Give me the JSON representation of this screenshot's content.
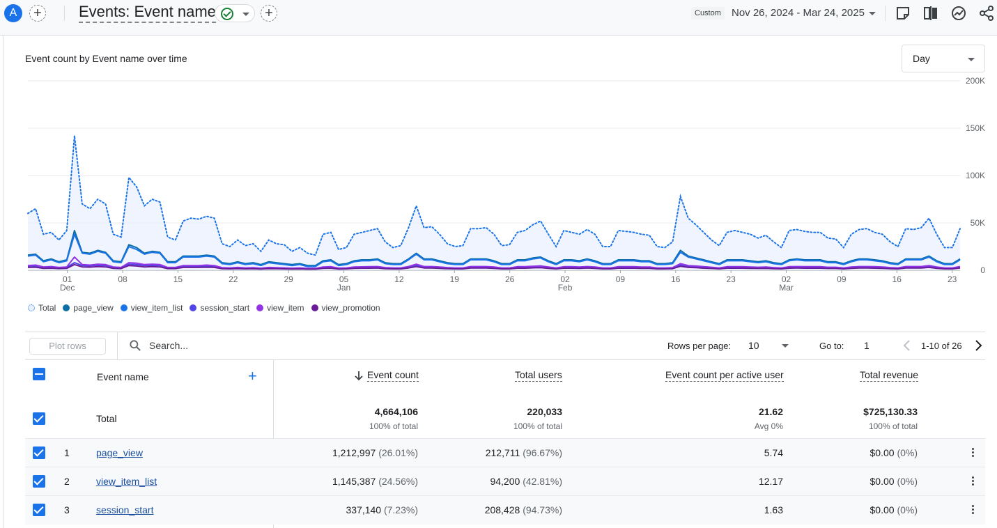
{
  "header": {
    "avatar_letter": "A",
    "title": "Events: Event name",
    "date_chip": "Custom",
    "date_range": "Nov 26, 2024 - Mar 24, 2025",
    "icons": [
      "add-icon",
      "check-circle-icon",
      "chevron-down-icon",
      "add-icon",
      "share-note-icon",
      "compare-icon",
      "insights-icon",
      "share-icon"
    ]
  },
  "chart": {
    "title": "Event count by Event name over time",
    "granularity": "Day",
    "legend": [
      "Total",
      "page_view",
      "view_item_list",
      "session_start",
      "view_item",
      "view_promotion"
    ]
  },
  "chart_data": {
    "type": "line",
    "title": "Event count by Event name over time",
    "x_start": "Nov 26, 2024",
    "x_end": "Mar 24, 2025",
    "x_ticks": [
      {
        "label": "01",
        "sub": "Dec",
        "date": "2024-12-01"
      },
      {
        "label": "08",
        "sub": "",
        "date": "2024-12-08"
      },
      {
        "label": "15",
        "sub": "",
        "date": "2024-12-15"
      },
      {
        "label": "22",
        "sub": "",
        "date": "2024-12-22"
      },
      {
        "label": "29",
        "sub": "",
        "date": "2024-12-29"
      },
      {
        "label": "05",
        "sub": "Jan",
        "date": "2025-01-05"
      },
      {
        "label": "12",
        "sub": "",
        "date": "2025-01-12"
      },
      {
        "label": "19",
        "sub": "",
        "date": "2025-01-19"
      },
      {
        "label": "26",
        "sub": "",
        "date": "2025-01-26"
      },
      {
        "label": "02",
        "sub": "Feb",
        "date": "2025-02-02"
      },
      {
        "label": "09",
        "sub": "",
        "date": "2025-02-09"
      },
      {
        "label": "16",
        "sub": "",
        "date": "2025-02-16"
      },
      {
        "label": "23",
        "sub": "",
        "date": "2025-02-23"
      },
      {
        "label": "02",
        "sub": "Mar",
        "date": "2025-03-02"
      },
      {
        "label": "09",
        "sub": "",
        "date": "2025-03-09"
      },
      {
        "label": "16",
        "sub": "",
        "date": "2025-03-16"
      },
      {
        "label": "23",
        "sub": "",
        "date": "2025-03-23"
      }
    ],
    "y_ticks": [
      "0",
      "50K",
      "100K",
      "150K",
      "200K"
    ],
    "ylim": [
      0,
      200000
    ],
    "grid": true,
    "series": [
      {
        "name": "Total",
        "color": "#1a73e8",
        "style": "dotted-area",
        "values": [
          60000,
          65000,
          38000,
          40000,
          32000,
          42000,
          142000,
          70000,
          65000,
          75000,
          70000,
          38000,
          35000,
          98000,
          88000,
          68000,
          75000,
          72000,
          35000,
          32000,
          52000,
          55000,
          54000,
          57000,
          55000,
          28000,
          25000,
          32000,
          26000,
          28000,
          20000,
          32000,
          28000,
          27000,
          20000,
          24000,
          18000,
          16000,
          38000,
          40000,
          22000,
          24000,
          38000,
          40000,
          42000,
          44000,
          30000,
          24000,
          26000,
          45000,
          68000,
          45000,
          46000,
          38000,
          28000,
          25000,
          26000,
          44000,
          44000,
          45000,
          38000,
          26000,
          27000,
          40000,
          42000,
          48000,
          52000,
          38000,
          25000,
          42000,
          40000,
          38000,
          43000,
          38000,
          25000,
          25000,
          42000,
          41000,
          40000,
          38000,
          37000,
          25000,
          24000,
          30000,
          78000,
          55000,
          48000,
          40000,
          32000,
          26000,
          40000,
          42000,
          40000,
          38000,
          34000,
          37000,
          30000,
          24000,
          42000,
          43000,
          41000,
          40000,
          40000,
          34000,
          33000,
          24000,
          38000,
          43000,
          44000,
          40000,
          38000,
          30000,
          25000,
          44000,
          43000,
          45000,
          55000,
          38000,
          24000,
          24000,
          44000
        ]
      },
      {
        "name": "page_view",
        "color": "#0b6ea6",
        "style": "line",
        "values": [
          16000,
          17000,
          10000,
          12000,
          9000,
          11000,
          42000,
          19000,
          18000,
          21000,
          19000,
          10000,
          9000,
          27000,
          24000,
          18000,
          20000,
          19000,
          9000,
          9000,
          15000,
          15000,
          15000,
          16000,
          15000,
          8000,
          7000,
          9000,
          7000,
          8000,
          6000,
          9000,
          8000,
          7000,
          6000,
          7000,
          5000,
          5000,
          10000,
          11000,
          6000,
          7000,
          10000,
          11000,
          11000,
          12000,
          8000,
          7000,
          7000,
          12000,
          18000,
          12000,
          12000,
          10000,
          8000,
          7000,
          7000,
          12000,
          12000,
          12000,
          10000,
          7000,
          7000,
          11000,
          11000,
          13000,
          14000,
          10000,
          7000,
          11000,
          11000,
          10000,
          12000,
          10000,
          7000,
          7000,
          11000,
          11000,
          11000,
          10000,
          10000,
          7000,
          7000,
          8000,
          21000,
          15000,
          13000,
          11000,
          9000,
          7000,
          11000,
          11000,
          11000,
          10000,
          9000,
          10000,
          8000,
          7000,
          11000,
          12000,
          11000,
          11000,
          11000,
          9000,
          9000,
          7000,
          10000,
          12000,
          12000,
          11000,
          10000,
          8000,
          7000,
          12000,
          12000,
          12000,
          15000,
          10000,
          7000,
          7000,
          12000
        ]
      },
      {
        "name": "view_item_list",
        "color": "#1a73e8",
        "style": "line",
        "values": [
          15000,
          16000,
          9000,
          11000,
          8000,
          10000,
          38000,
          18000,
          17000,
          20000,
          18000,
          9000,
          8000,
          25000,
          22000,
          17000,
          19000,
          18000,
          8000,
          8000,
          14000,
          14000,
          14000,
          15000,
          14000,
          7000,
          6000,
          8000,
          6000,
          7000,
          5000,
          8000,
          7000,
          6000,
          5000,
          6000,
          4000,
          4000,
          9000,
          10000,
          5000,
          6000,
          9000,
          10000,
          10000,
          11000,
          7000,
          6000,
          6000,
          11000,
          17000,
          11000,
          11000,
          9000,
          7000,
          6000,
          6000,
          11000,
          11000,
          11000,
          9000,
          6000,
          6000,
          10000,
          10000,
          12000,
          13000,
          9000,
          6000,
          10000,
          10000,
          9000,
          11000,
          9000,
          6000,
          6000,
          10000,
          10000,
          10000,
          9000,
          9000,
          6000,
          6000,
          7000,
          19000,
          14000,
          12000,
          10000,
          8000,
          6000,
          10000,
          10000,
          10000,
          9000,
          8000,
          9000,
          7000,
          6000,
          10000,
          11000,
          10000,
          10000,
          10000,
          8000,
          8000,
          6000,
          9000,
          11000,
          11000,
          10000,
          9000,
          7000,
          6000,
          11000,
          11000,
          11000,
          14000,
          9000,
          6000,
          6000,
          11000
        ]
      },
      {
        "name": "session_start",
        "color": "#4f46e5",
        "style": "line",
        "values": [
          4000,
          4500,
          3000,
          3200,
          2800,
          3000,
          8000,
          5000,
          4800,
          5200,
          5000,
          3000,
          2800,
          6500,
          6000,
          5000,
          5200,
          5000,
          2800,
          2700,
          4200,
          4200,
          4300,
          4400,
          4200,
          2500,
          2300,
          2700,
          2300,
          2500,
          2000,
          2700,
          2400,
          2300,
          2000,
          2200,
          1800,
          1800,
          3000,
          3200,
          2000,
          2200,
          3000,
          3200,
          3200,
          3400,
          2500,
          2200,
          2200,
          3400,
          5000,
          3400,
          3400,
          3000,
          2500,
          2200,
          2200,
          3400,
          3400,
          3400,
          3000,
          2200,
          2200,
          3200,
          3200,
          3600,
          3800,
          3000,
          2200,
          3200,
          3200,
          3000,
          3400,
          3000,
          2200,
          2200,
          3200,
          3200,
          3200,
          3000,
          3000,
          2200,
          2200,
          2400,
          5500,
          4200,
          3800,
          3200,
          2700,
          2200,
          3200,
          3200,
          3200,
          3000,
          2700,
          3000,
          2500,
          2200,
          3200,
          3400,
          3200,
          3200,
          3200,
          2700,
          2700,
          2200,
          3000,
          3400,
          3400,
          3200,
          3000,
          2500,
          2200,
          3400,
          3400,
          3400,
          4000,
          3000,
          2200,
          2200,
          3400
        ]
      },
      {
        "name": "view_item",
        "color": "#9334e6",
        "style": "line",
        "values": [
          5000,
          5500,
          3500,
          4000,
          3000,
          3500,
          14000,
          6000,
          5500,
          6500,
          6000,
          3500,
          3000,
          8000,
          7500,
          6000,
          6500,
          6000,
          3000,
          3000,
          5000,
          5000,
          5000,
          5500,
          5000,
          2800,
          2500,
          3000,
          2500,
          2800,
          2200,
          3000,
          2700,
          2500,
          2200,
          2500,
          2000,
          2000,
          3500,
          3800,
          2300,
          2500,
          3500,
          3700,
          3800,
          4000,
          2900,
          2500,
          2500,
          4000,
          6500,
          4000,
          4000,
          3500,
          2900,
          2500,
          2500,
          4000,
          4000,
          4000,
          3500,
          2500,
          2500,
          3800,
          3800,
          4300,
          4600,
          3500,
          2500,
          3800,
          3800,
          3500,
          4000,
          3500,
          2500,
          2500,
          3800,
          3800,
          3800,
          3500,
          3500,
          2500,
          2500,
          2800,
          7000,
          5000,
          4500,
          3800,
          3200,
          2500,
          3800,
          3800,
          3800,
          3500,
          3200,
          3500,
          2900,
          2500,
          3800,
          4000,
          3800,
          3800,
          3800,
          3200,
          3200,
          2500,
          3500,
          4000,
          4000,
          3800,
          3500,
          2900,
          2500,
          4000,
          4000,
          4000,
          5000,
          3500,
          2500,
          2500,
          4000
        ]
      },
      {
        "name": "view_promotion",
        "color": "#6a1b9a",
        "style": "line",
        "values": [
          3000,
          3200,
          2000,
          2200,
          1800,
          2000,
          6000,
          3500,
          3300,
          3800,
          3500,
          2000,
          1800,
          5000,
          4500,
          3500,
          3800,
          3500,
          1800,
          1800,
          3000,
          3000,
          3000,
          3200,
          3000,
          1600,
          1500,
          1800,
          1500,
          1600,
          1300,
          1800,
          1600,
          1500,
          1300,
          1500,
          1200,
          1200,
          2000,
          2200,
          1300,
          1500,
          2000,
          2200,
          2200,
          2400,
          1700,
          1500,
          1500,
          2400,
          3800,
          2400,
          2400,
          2000,
          1700,
          1500,
          1500,
          2400,
          2400,
          2400,
          2000,
          1500,
          1500,
          2200,
          2200,
          2600,
          2800,
          2000,
          1500,
          2200,
          2200,
          2000,
          2400,
          2000,
          1500,
          1500,
          2200,
          2200,
          2200,
          2000,
          2000,
          1500,
          1500,
          1700,
          4200,
          3000,
          2700,
          2200,
          1900,
          1500,
          2200,
          2200,
          2200,
          2000,
          1900,
          2000,
          1700,
          1500,
          2200,
          2400,
          2200,
          2200,
          2200,
          1900,
          1900,
          1500,
          2000,
          2400,
          2400,
          2200,
          2000,
          1700,
          1500,
          2400,
          2400,
          2400,
          3000,
          2000,
          1500,
          1500,
          2400
        ]
      }
    ]
  },
  "toolbar": {
    "plot_rows": "Plot rows",
    "search_placeholder": "Search...",
    "rows_per_page_label": "Rows per page:",
    "rows_per_page": "10",
    "goto_label": "Go to:",
    "goto_value": "1",
    "page_range": "1-10 of 26"
  },
  "table": {
    "columns": {
      "name": "Event name",
      "event_count": "Event count",
      "total_users": "Total users",
      "per_user": "Event count per active user",
      "revenue": "Total revenue"
    },
    "total": {
      "label": "Total",
      "event_count": "4,664,106",
      "event_count_sub": "100% of total",
      "total_users": "220,033",
      "total_users_sub": "100% of total",
      "per_user": "21.62",
      "per_user_sub": "Avg 0%",
      "revenue": "$725,130.33",
      "revenue_sub": "100% of total"
    },
    "rows": [
      {
        "rank": "1",
        "name": "page_view",
        "event_count": "1,212,997",
        "event_pct": "(26.01%)",
        "users": "212,711",
        "users_pct": "(96.67%)",
        "per_user": "5.74",
        "revenue": "$0.00",
        "revenue_pct": "(0%)"
      },
      {
        "rank": "2",
        "name": "view_item_list",
        "event_count": "1,145,387",
        "event_pct": "(24.56%)",
        "users": "94,200",
        "users_pct": "(42.81%)",
        "per_user": "12.17",
        "revenue": "$0.00",
        "revenue_pct": "(0%)"
      },
      {
        "rank": "3",
        "name": "session_start",
        "event_count": "337,140",
        "event_pct": "(7.23%)",
        "users": "208,428",
        "users_pct": "(94.73%)",
        "per_user": "1.63",
        "revenue": "$0.00",
        "revenue_pct": "(0%)"
      }
    ]
  }
}
